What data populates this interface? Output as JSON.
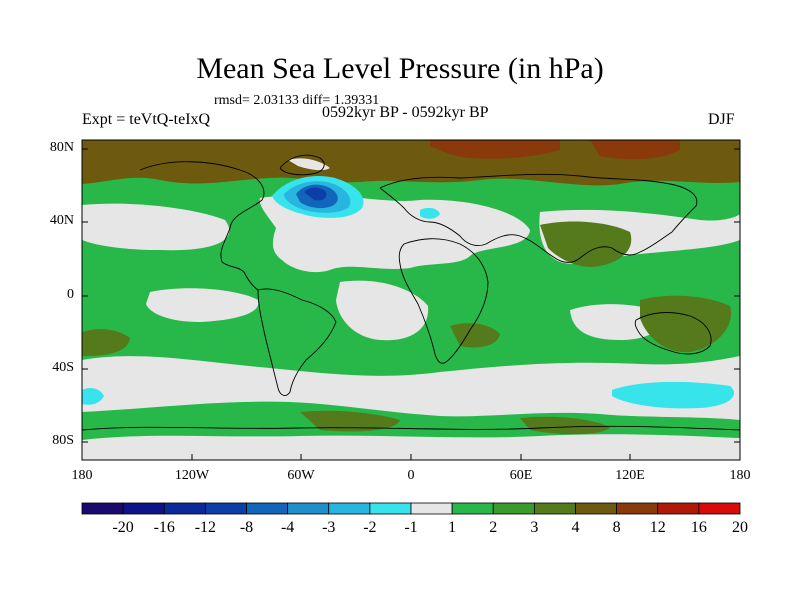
{
  "header": {
    "title": "Mean Sea Level Pressure (in hPa)",
    "stats": "rmsd= 2.03133 diff= 1.39331",
    "experiment": "Expt = teVtQ-teIxQ",
    "period": "0592kyr BP - 0592kyr BP",
    "season": "DJF"
  },
  "axes": {
    "y_labels": [
      "80N",
      "40N",
      "0",
      "40S",
      "80S"
    ],
    "x_labels": [
      "180",
      "120W",
      "60W",
      "0",
      "60E",
      "120E",
      "180"
    ]
  },
  "colorbar": {
    "labels": [
      "-20",
      "-16",
      "-12",
      "-8",
      "-4",
      "-3",
      "-2",
      "-1",
      "1",
      "2",
      "3",
      "4",
      "8",
      "12",
      "16",
      "20"
    ],
    "colors": [
      "#1a0a6e",
      "#0c1487",
      "#0a2a9a",
      "#0c3ea8",
      "#1166bb",
      "#1f8fcc",
      "#28b6e0",
      "#38e4ec",
      "#e6e6e6",
      "#28b84a",
      "#3a9a2c",
      "#557a1c",
      "#6e5a0e",
      "#8a3a0a",
      "#b01808",
      "#d80a0a"
    ]
  }
}
